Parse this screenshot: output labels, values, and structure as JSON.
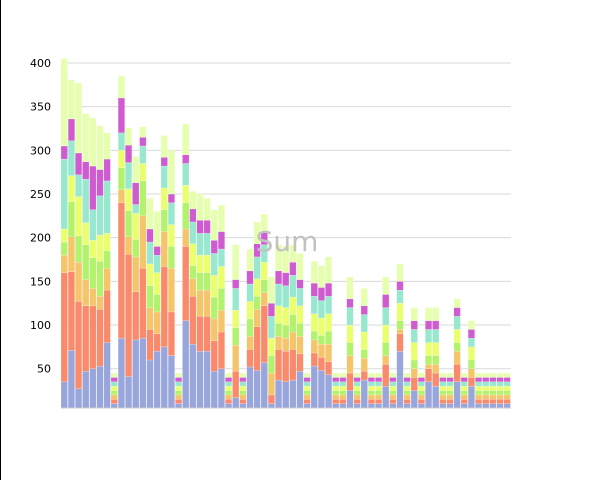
{
  "chart_data": {
    "type": "bar",
    "stacked": true,
    "title": "Sum",
    "ylim": [
      5,
      400
    ],
    "yticks": [
      50,
      100,
      150,
      200,
      250,
      300,
      350,
      400
    ],
    "grid": true,
    "colors": [
      "#98a6dc",
      "#f98a6c",
      "#f5c56b",
      "#b3f26c",
      "#eaff6e",
      "#97e8ce",
      "#cf5bd0",
      "#e6ffae"
    ],
    "series": [
      {
        "values": [
          30,
          66,
          22,
          42,
          45,
          48,
          75,
          5,
          80,
          36,
          78,
          80,
          55,
          65,
          70,
          60,
          5,
          100,
          73,
          65,
          65,
          42,
          45,
          5,
          12,
          5,
          47,
          43,
          52,
          5,
          32,
          30,
          32,
          42,
          5,
          48,
          43,
          38,
          5,
          5,
          20,
          5,
          32,
          5,
          5,
          25,
          5,
          65,
          5,
          20,
          5,
          30,
          25,
          5,
          5,
          30,
          5,
          25,
          5,
          5,
          5,
          5,
          5
        ]
      },
      {
        "values": [
          125,
          90,
          100,
          75,
          72,
          65,
          60,
          5,
          155,
          140,
          55,
          80,
          35,
          20,
          92,
          50,
          5,
          85,
          55,
          40,
          40,
          35,
          42,
          5,
          30,
          5,
          20,
          50,
          65,
          10,
          35,
          35,
          35,
          20,
          5,
          15,
          15,
          15,
          5,
          5,
          20,
          5,
          10,
          5,
          5,
          25,
          5,
          20,
          5,
          15,
          5,
          15,
          15,
          5,
          5,
          20,
          5,
          10,
          5,
          5,
          5,
          5,
          5
        ]
      },
      {
        "values": [
          20,
          40,
          45,
          30,
          20,
          15,
          25,
          5,
          15,
          20,
          40,
          60,
          25,
          25,
          40,
          50,
          5,
          20,
          20,
          30,
          30,
          25,
          25,
          5,
          30,
          5,
          15,
          20,
          15,
          25,
          15,
          15,
          20,
          20,
          5,
          15,
          15,
          20,
          5,
          5,
          20,
          5,
          15,
          5,
          5,
          10,
          5,
          5,
          5,
          10,
          5,
          5,
          10,
          5,
          5,
          15,
          5,
          10,
          5,
          5,
          5,
          5,
          5
        ]
      },
      {
        "values": [
          15,
          40,
          30,
          40,
          35,
          40,
          20,
          5,
          25,
          30,
          20,
          40,
          25,
          20,
          25,
          25,
          5,
          30,
          15,
          20,
          20,
          25,
          25,
          5,
          20,
          5,
          20,
          15,
          15,
          20,
          15,
          15,
          20,
          15,
          5,
          10,
          10,
          15,
          5,
          5,
          15,
          5,
          10,
          5,
          5,
          15,
          5,
          10,
          5,
          10,
          5,
          10,
          10,
          5,
          5,
          10,
          5,
          10,
          5,
          5,
          5,
          5,
          5
        ]
      },
      {
        "values": [
          15,
          30,
          45,
          25,
          20,
          30,
          20,
          5,
          20,
          25,
          30,
          20,
          25,
          25,
          25,
          25,
          5,
          20,
          25,
          20,
          20,
          25,
          25,
          5,
          20,
          5,
          20,
          20,
          20,
          20,
          20,
          20,
          20,
          20,
          5,
          20,
          20,
          20,
          5,
          5,
          20,
          5,
          20,
          5,
          5,
          20,
          5,
          20,
          5,
          20,
          5,
          15,
          15,
          5,
          5,
          15,
          5,
          15,
          5,
          5,
          5,
          5,
          5
        ]
      },
      {
        "values": [
          80,
          40,
          25,
          50,
          35,
          45,
          60,
          5,
          20,
          30,
          10,
          20,
          25,
          20,
          25,
          25,
          5,
          25,
          25,
          25,
          25,
          25,
          20,
          5,
          25,
          5,
          20,
          25,
          20,
          25,
          25,
          25,
          25,
          20,
          5,
          20,
          20,
          20,
          5,
          5,
          20,
          5,
          20,
          5,
          5,
          20,
          5,
          15,
          5,
          15,
          5,
          15,
          15,
          5,
          5,
          15,
          5,
          10,
          5,
          5,
          5,
          5,
          5
        ]
      },
      {
        "values": [
          15,
          25,
          25,
          20,
          50,
          30,
          25,
          5,
          40,
          20,
          25,
          10,
          15,
          10,
          10,
          10,
          5,
          10,
          15,
          15,
          15,
          15,
          20,
          5,
          10,
          5,
          15,
          15,
          15,
          15,
          15,
          15,
          15,
          10,
          5,
          15,
          15,
          15,
          5,
          5,
          10,
          5,
          10,
          5,
          5,
          15,
          5,
          10,
          5,
          10,
          5,
          10,
          10,
          5,
          5,
          10,
          5,
          10,
          5,
          5,
          5,
          5,
          5
        ]
      },
      {
        "values": [
          100,
          45,
          80,
          55,
          55,
          50,
          30,
          5,
          25,
          20,
          30,
          12,
          35,
          40,
          25,
          50,
          5,
          35,
          20,
          30,
          25,
          35,
          30,
          5,
          40,
          5,
          25,
          25,
          20,
          30,
          30,
          30,
          20,
          30,
          5,
          25,
          25,
          30,
          5,
          5,
          25,
          5,
          20,
          5,
          5,
          20,
          5,
          20,
          5,
          15,
          5,
          15,
          15,
          5,
          5,
          10,
          5,
          10,
          5,
          5,
          5,
          5,
          5
        ]
      }
    ]
  }
}
